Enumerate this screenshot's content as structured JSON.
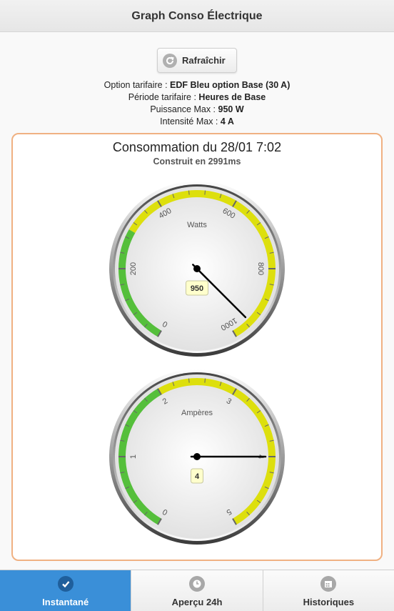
{
  "header": {
    "title": "Graph Conso Électrique"
  },
  "refresh": {
    "label": "Rafraîchir",
    "icon": "refresh-icon"
  },
  "info": [
    {
      "label": "Option tarifaire : ",
      "value": "EDF Bleu option Base (30 A)"
    },
    {
      "label": "Période tarifaire : ",
      "value": "Heures de Base"
    },
    {
      "label": "Puissance Max : ",
      "value": "950 W"
    },
    {
      "label": "Intensité Max : ",
      "value": "4 A"
    }
  ],
  "chart": {
    "title": "Consommation du 28/01 7:02",
    "subtitle": "Construit en 2991ms"
  },
  "chart_data": [
    {
      "type": "gauge",
      "title": "Watts",
      "min": 0,
      "max": 1000,
      "ticks": [
        "0",
        "200",
        "400",
        "600",
        "800",
        "1000"
      ],
      "value": 950,
      "value_label": "950",
      "bands": [
        {
          "from": 0,
          "to": 300,
          "color": "#55bf3b"
        },
        {
          "from": 300,
          "to": 1000,
          "color": "#dddf0d"
        }
      ]
    },
    {
      "type": "gauge",
      "title": "Ampères",
      "min": 0,
      "max": 5,
      "ticks": [
        "0",
        "1",
        "2",
        "3",
        "4",
        "5"
      ],
      "value": 4,
      "value_label": "4",
      "bands": [
        {
          "from": 0,
          "to": 2,
          "color": "#55bf3b"
        },
        {
          "from": 2,
          "to": 5,
          "color": "#dddf0d"
        }
      ]
    }
  ],
  "nav": [
    {
      "label": "Instantané",
      "icon": "check-icon",
      "active": true
    },
    {
      "label": "Aperçu 24h",
      "icon": "clock-icon",
      "active": false
    },
    {
      "label": "Historiques",
      "icon": "calendar-icon",
      "active": false
    }
  ]
}
